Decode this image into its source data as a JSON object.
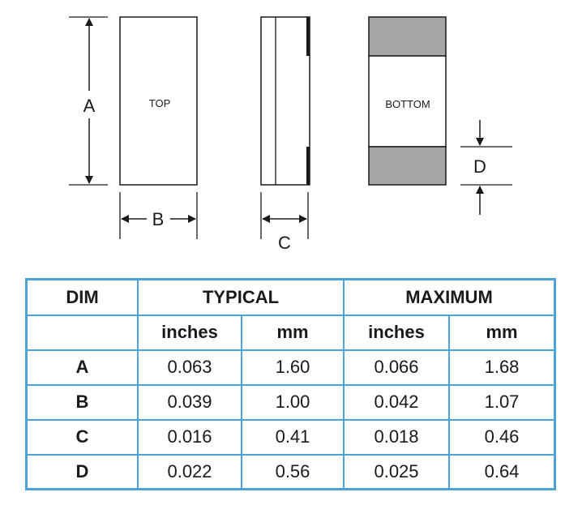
{
  "drawing": {
    "top_label": "TOP",
    "bottom_label": "BOTTOM",
    "dim_a": "A",
    "dim_b": "B",
    "dim_c": "C",
    "dim_d": "D",
    "terminal_color": "#a6a6a6",
    "line_color": "#1a1a1a"
  },
  "table": {
    "accent": "#4ea3d6",
    "headers": {
      "dim": "DIM",
      "typical": "TYPICAL",
      "maximum": "MAXIMUM",
      "typical_inches": "inches",
      "typical_mm": "mm",
      "maximum_inches": "inches",
      "maximum_mm": "mm"
    },
    "rows": [
      {
        "dim": "A",
        "typ_in": "0.063",
        "typ_mm": "1.60",
        "max_in": "0.066",
        "max_mm": "1.68"
      },
      {
        "dim": "B",
        "typ_in": "0.039",
        "typ_mm": "1.00",
        "max_in": "0.042",
        "max_mm": "1.07"
      },
      {
        "dim": "C",
        "typ_in": "0.016",
        "typ_mm": "0.41",
        "max_in": "0.018",
        "max_mm": "0.46"
      },
      {
        "dim": "D",
        "typ_in": "0.022",
        "typ_mm": "0.56",
        "max_in": "0.025",
        "max_mm": "0.64"
      }
    ]
  }
}
